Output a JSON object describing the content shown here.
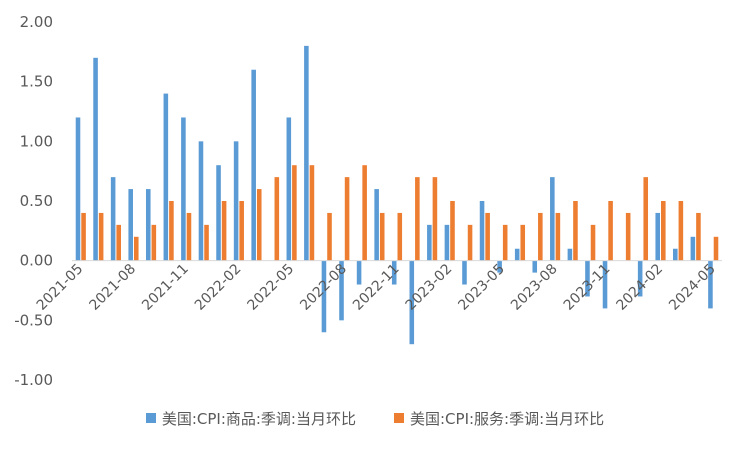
{
  "chart_data": {
    "type": "bar",
    "title": "",
    "xlabel": "",
    "ylabel": "",
    "ylim": [
      -1.0,
      2.0
    ],
    "yticks": [
      "2.00",
      "1.50",
      "1.00",
      "0.50",
      "0.00",
      "-0.50",
      "-1.00"
    ],
    "grid": false,
    "legend_position": "bottom",
    "categories": [
      "2021-05",
      "2021-06",
      "2021-07",
      "2021-08",
      "2021-09",
      "2021-10",
      "2021-11",
      "2021-12",
      "2022-01",
      "2022-02",
      "2022-03",
      "2022-04",
      "2022-05",
      "2022-06",
      "2022-07",
      "2022-08",
      "2022-09",
      "2022-10",
      "2022-11",
      "2022-12",
      "2023-01",
      "2023-02",
      "2023-03",
      "2023-04",
      "2023-05",
      "2023-06",
      "2023-07",
      "2023-08",
      "2023-09",
      "2023-10",
      "2023-11",
      "2023-12",
      "2024-01",
      "2024-02",
      "2024-03",
      "2024-04",
      "2024-05"
    ],
    "xtick_labels": [
      "2021-05",
      "2021-08",
      "2021-11",
      "2022-02",
      "2022-05",
      "2022-08",
      "2022-11",
      "2023-02",
      "2023-05",
      "2023-08",
      "2023-11",
      "2024-02",
      "2024-05"
    ],
    "series": [
      {
        "name": "美国:CPI:商品:季调:当月环比",
        "color": "#5B9BD5",
        "values": [
          1.2,
          1.7,
          0.7,
          0.6,
          0.6,
          1.4,
          1.2,
          1.0,
          0.8,
          1.0,
          1.6,
          0.0,
          1.2,
          1.8,
          -0.6,
          -0.5,
          -0.2,
          0.6,
          -0.2,
          -0.7,
          0.3,
          0.3,
          -0.2,
          0.5,
          -0.1,
          0.1,
          -0.1,
          0.7,
          0.1,
          -0.3,
          -0.4,
          0.0,
          -0.3,
          0.4,
          0.1,
          0.2,
          -0.4
        ]
      },
      {
        "name": "美国:CPI:服务:季调:当月环比",
        "color": "#ED7D31",
        "values": [
          0.4,
          0.4,
          0.3,
          0.2,
          0.3,
          0.5,
          0.4,
          0.3,
          0.5,
          0.5,
          0.6,
          0.7,
          0.8,
          0.8,
          0.4,
          0.7,
          0.8,
          0.4,
          0.4,
          0.7,
          0.7,
          0.5,
          0.3,
          0.4,
          0.3,
          0.3,
          0.4,
          0.4,
          0.5,
          0.3,
          0.5,
          0.4,
          0.7,
          0.5,
          0.5,
          0.4,
          0.2
        ]
      }
    ]
  }
}
